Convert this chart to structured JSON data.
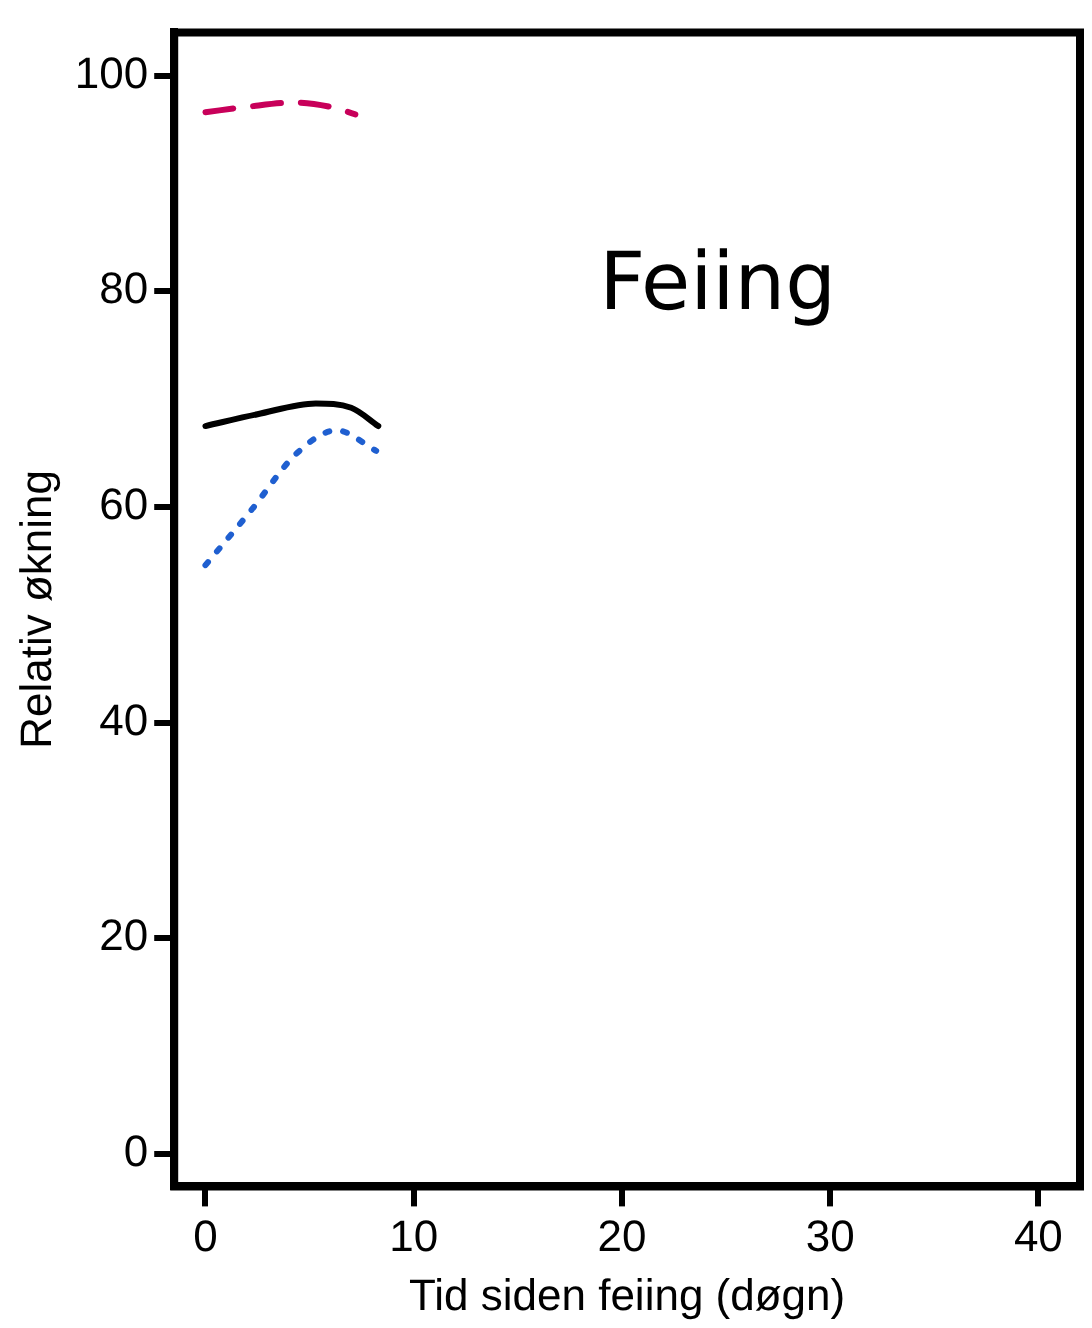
{
  "chart_data": {
    "type": "line",
    "xlabel": "Tid siden feiing (døgn)",
    "ylabel": "Relativ økning",
    "annotations": [
      "Feiing"
    ],
    "xlim": [
      -1.5,
      42
    ],
    "xticks": [
      0,
      10,
      20,
      30,
      40
    ],
    "ylim": [
      -3,
      104
    ],
    "yticks": [
      0,
      20,
      40,
      60,
      80,
      100
    ],
    "grid": false,
    "legend": false,
    "marker": "none",
    "series": [
      {
        "color": "#c8005a",
        "line_style": "dashed",
        "x": [
          0,
          2,
          4.3,
          6,
          7.2
        ],
        "values": [
          96.6,
          97.1,
          97.5,
          97.1,
          96.4
        ]
      },
      {
        "color": "#000000",
        "line_style": "solid",
        "x": [
          0,
          2.5,
          5.3,
          7,
          8.3
        ],
        "values": [
          67.5,
          68.6,
          69.6,
          69.2,
          67.5
        ]
      },
      {
        "color": "#1f5fd0",
        "line_style": "dotted",
        "x": [
          0,
          2.2,
          4.4,
          6.3,
          8.2
        ],
        "values": [
          54.6,
          59.7,
          65,
          67.1,
          65.2
        ]
      }
    ]
  }
}
